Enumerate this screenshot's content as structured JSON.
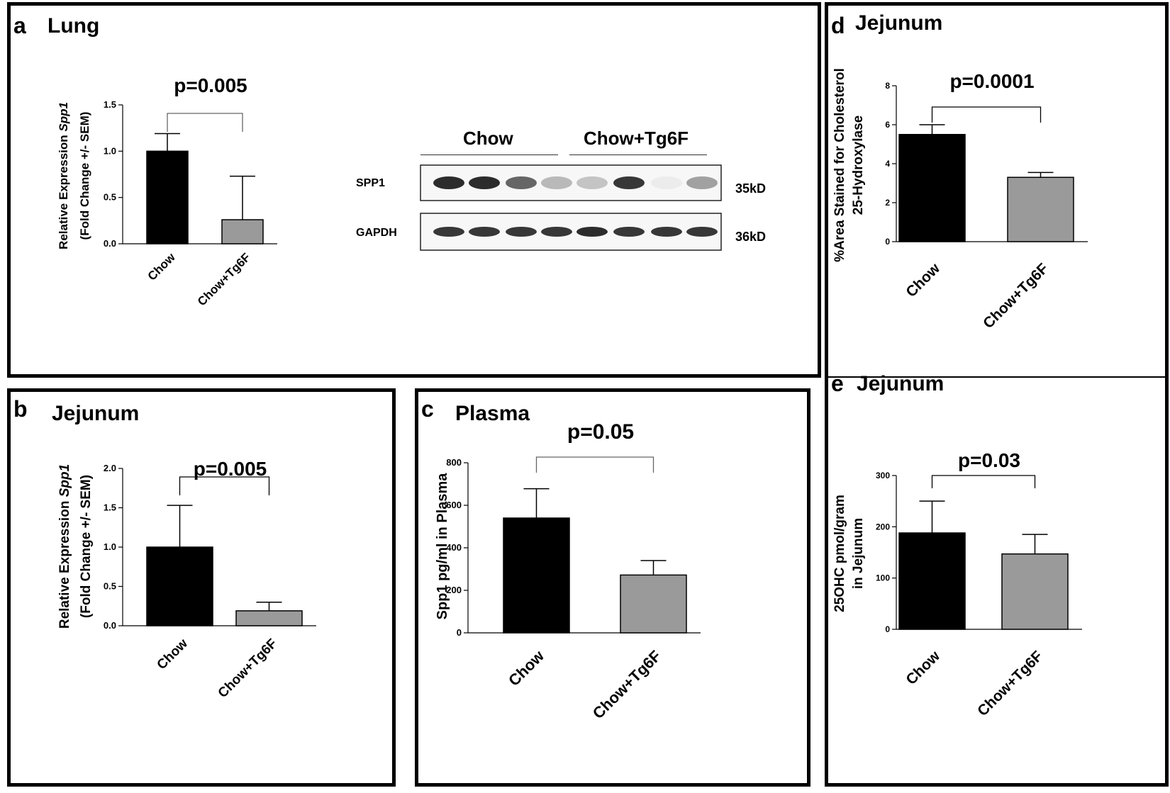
{
  "colors": {
    "chow": "#000000",
    "tg6f": "#9a9a9a",
    "ink": "#000000",
    "sig": "#888888"
  },
  "panels": {
    "a": {
      "letter": "a",
      "title": "Lung"
    },
    "b": {
      "letter": "b",
      "title": "Jejunum"
    },
    "c": {
      "letter": "c",
      "title": "Plasma"
    },
    "d": {
      "letter": "d",
      "title": "Jejunum"
    },
    "e": {
      "letter": "e",
      "title": "Jejunum"
    }
  },
  "blot": {
    "group_labels": [
      "Chow",
      "Chow+Tg6F"
    ],
    "rows": [
      {
        "label": "SPP1",
        "size": "35kD",
        "intensities": [
          0.9,
          0.9,
          0.65,
          0.3,
          0.25,
          0.85,
          0.08,
          0.4
        ]
      },
      {
        "label": "GAPDH",
        "size": "36kD",
        "intensities": [
          0.85,
          0.85,
          0.85,
          0.85,
          0.9,
          0.85,
          0.85,
          0.85
        ]
      }
    ]
  },
  "chart_data": [
    {
      "id": "a",
      "type": "bar",
      "title": "Lung",
      "categories": [
        "Chow",
        "Chow+Tg6F"
      ],
      "values": [
        1.0,
        0.26
      ],
      "errors": [
        0.19,
        0.47
      ],
      "ylabel_line1": "Relative Expression Spp1",
      "ylabel_italic": "Spp1",
      "ylabel_line2": "(Fold Change +/- SEM)",
      "ylim": [
        0,
        1.5
      ],
      "yticks": [
        "0.0",
        "0.5",
        "1.0",
        "1.5"
      ],
      "ytick_values": [
        0,
        0.5,
        1.0,
        1.5
      ],
      "pvalue": "p=0.005"
    },
    {
      "id": "b",
      "type": "bar",
      "title": "Jejunum",
      "categories": [
        "Chow",
        "Chow+Tg6F"
      ],
      "values": [
        1.0,
        0.19
      ],
      "errors": [
        0.53,
        0.11
      ],
      "ylabel_line1": "Relative Expression Spp1",
      "ylabel_italic": "Spp1",
      "ylabel_line2": "(Fold Change +/- SEM)",
      "ylim": [
        0,
        2.0
      ],
      "yticks": [
        "0.0",
        "0.5",
        "1.0",
        "1.5",
        "2.0"
      ],
      "ytick_values": [
        0,
        0.5,
        1.0,
        1.5,
        2.0
      ],
      "pvalue": "p=0.005"
    },
    {
      "id": "c",
      "type": "bar",
      "title": "Plasma",
      "categories": [
        "Chow",
        "Chow+Tg6F"
      ],
      "values": [
        540,
        272
      ],
      "errors": [
        138,
        68
      ],
      "ylabel_line1": "Spp1 pg/ml  in Plasma",
      "ylabel_line2": "",
      "ylim": [
        0,
        800
      ],
      "yticks": [
        "0",
        "200",
        "400",
        "600",
        "800"
      ],
      "ytick_values": [
        0,
        200,
        400,
        600,
        800
      ],
      "pvalue": "p=0.05"
    },
    {
      "id": "d",
      "type": "bar",
      "title": "Jejunum",
      "categories": [
        "Chow",
        "Chow+Tg6F"
      ],
      "values": [
        5.5,
        3.3
      ],
      "errors": [
        0.5,
        0.25
      ],
      "ylabel_line1": "%Area  Stained for Cholesterol",
      "ylabel_line2": "25-Hydroxylase",
      "ylim": [
        0,
        8
      ],
      "yticks": [
        "0",
        "2",
        "4",
        "6",
        "8"
      ],
      "ytick_values": [
        0,
        2,
        4,
        6,
        8
      ],
      "pvalue": "p=0.0001"
    },
    {
      "id": "e",
      "type": "bar",
      "title": "Jejunum",
      "categories": [
        "Chow",
        "Chow+Tg6F"
      ],
      "values": [
        188,
        147
      ],
      "errors": [
        62,
        38
      ],
      "ylabel_line1": "25OHC pmol/gram",
      "ylabel_line2": "in Jejunum",
      "ylim": [
        0,
        300
      ],
      "yticks": [
        "0",
        "100",
        "200",
        "300"
      ],
      "ytick_values": [
        0,
        100,
        200,
        300
      ],
      "pvalue": "p=0.03"
    }
  ]
}
